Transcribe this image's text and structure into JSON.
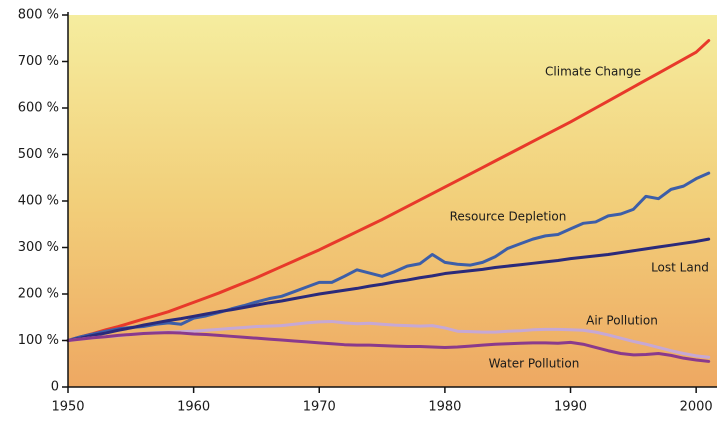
{
  "chart_data": {
    "type": "line",
    "x": [
      1950,
      1951,
      1952,
      1953,
      1954,
      1955,
      1956,
      1957,
      1958,
      1959,
      1960,
      1961,
      1962,
      1963,
      1964,
      1965,
      1966,
      1967,
      1968,
      1969,
      1970,
      1971,
      1972,
      1973,
      1974,
      1975,
      1976,
      1977,
      1978,
      1979,
      1980,
      1981,
      1982,
      1983,
      1984,
      1985,
      1986,
      1987,
      1988,
      1989,
      1990,
      1991,
      1992,
      1993,
      1994,
      1995,
      1996,
      1997,
      1998,
      1999,
      2000,
      2001
    ],
    "xlim": [
      1950,
      2001.5
    ],
    "xticks": [
      1950,
      1960,
      1970,
      1980,
      1990,
      2000
    ],
    "ylim": [
      0,
      800
    ],
    "yticks": [
      0,
      {
        "value": 100,
        "label": "100 %"
      },
      {
        "value": 200,
        "label": "200 %"
      },
      {
        "value": 300,
        "label": "300 %"
      },
      {
        "value": 400,
        "label": "400 %"
      },
      {
        "value": 500,
        "label": "500 %"
      },
      {
        "value": 600,
        "label": "600 %"
      },
      {
        "value": 700,
        "label": "700 %"
      },
      {
        "value": 800,
        "label": "800 %"
      }
    ],
    "grid": false,
    "series": [
      {
        "name": "Climate Change",
        "color": "#e8392a",
        "values": [
          100,
          108,
          115,
          123,
          130,
          138,
          146,
          154,
          162,
          172,
          182,
          192,
          202,
          213,
          224,
          235,
          247,
          259,
          271,
          283,
          295,
          308,
          321,
          334,
          347,
          360,
          374,
          388,
          402,
          416,
          430,
          444,
          458,
          472,
          486,
          500,
          514,
          528,
          542,
          556,
          570,
          585,
          600,
          615,
          630,
          645,
          660,
          675,
          690,
          705,
          720,
          745
        ]
      },
      {
        "name": "Resource Depletion",
        "color": "#3d5ea8",
        "values": [
          100,
          108,
          114,
          120,
          125,
          128,
          130,
          135,
          138,
          135,
          148,
          153,
          160,
          168,
          175,
          183,
          190,
          195,
          205,
          215,
          225,
          225,
          238,
          252,
          245,
          238,
          248,
          260,
          265,
          285,
          268,
          264,
          262,
          268,
          280,
          298,
          308,
          318,
          325,
          328,
          340,
          352,
          355,
          368,
          372,
          382,
          410,
          405,
          425,
          432,
          448,
          460
        ]
      },
      {
        "name": "Lost Land",
        "color": "#2b2a7a",
        "values": [
          100,
          105,
          111,
          116,
          122,
          127,
          133,
          138,
          143,
          147,
          152,
          157,
          162,
          166,
          171,
          176,
          181,
          185,
          190,
          195,
          200,
          204,
          208,
          212,
          217,
          221,
          226,
          230,
          235,
          239,
          244,
          247,
          250,
          253,
          257,
          260,
          263,
          266,
          269,
          272,
          276,
          279,
          282,
          285,
          289,
          293,
          297,
          301,
          305,
          309,
          313,
          318
        ]
      },
      {
        "name": "Air Pollution",
        "color": "#c6a8d4",
        "values": [
          100,
          103,
          106,
          108,
          110,
          113,
          115,
          117,
          118,
          119,
          120,
          122,
          124,
          126,
          128,
          130,
          131,
          132,
          135,
          138,
          140,
          141,
          138,
          136,
          137,
          135,
          133,
          132,
          131,
          132,
          127,
          120,
          119,
          118,
          118,
          120,
          121,
          123,
          124,
          124,
          123,
          122,
          118,
          112,
          105,
          98,
          92,
          85,
          78,
          72,
          67,
          64
        ]
      },
      {
        "name": "Water Pollution",
        "color": "#8a3a8c",
        "values": [
          100,
          103,
          106,
          108,
          111,
          113,
          115,
          116,
          117,
          116,
          114,
          113,
          111,
          109,
          107,
          105,
          103,
          101,
          99,
          97,
          95,
          93,
          91,
          90,
          90,
          89,
          88,
          87,
          87,
          86,
          85,
          86,
          88,
          90,
          92,
          93,
          94,
          95,
          95,
          94,
          96,
          92,
          85,
          78,
          72,
          69,
          70,
          72,
          68,
          62,
          58,
          55
        ]
      }
    ]
  }
}
